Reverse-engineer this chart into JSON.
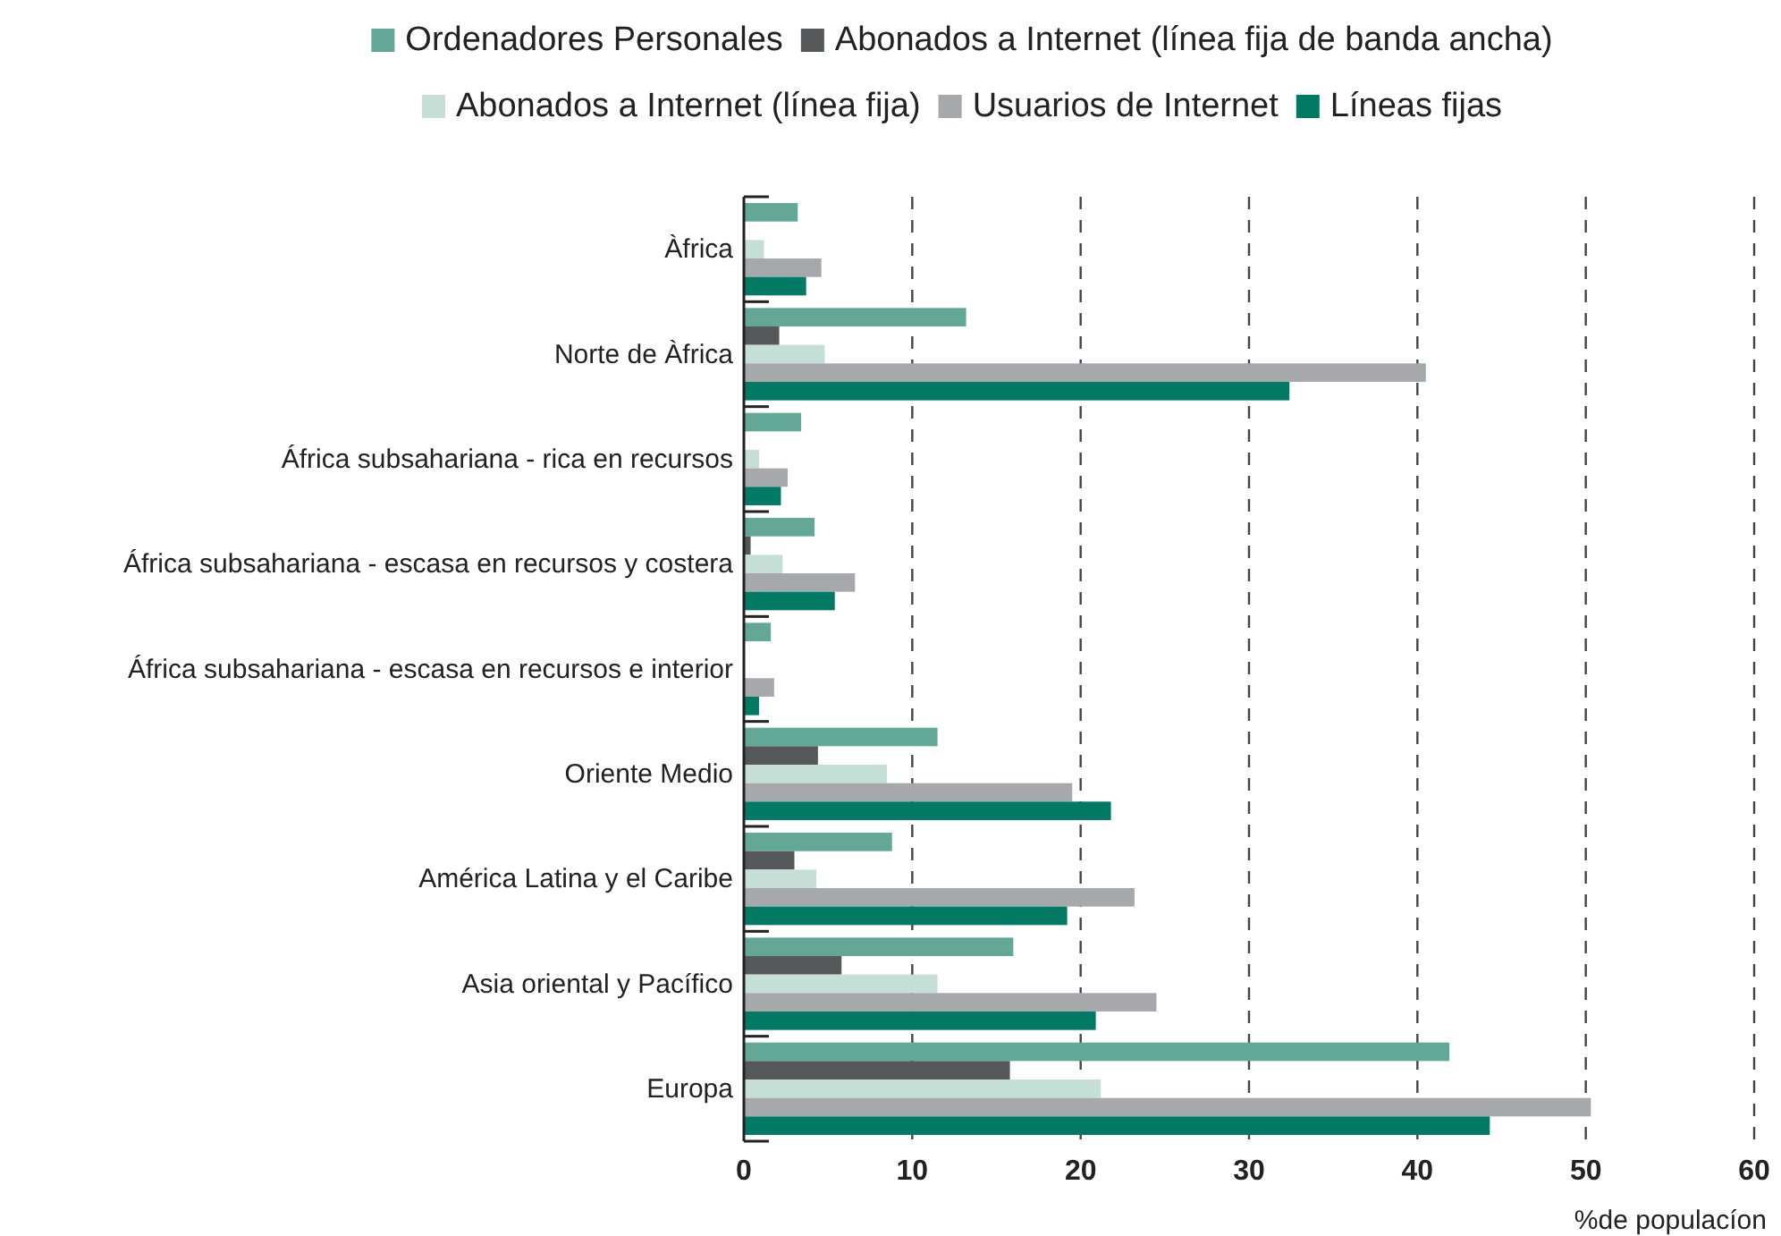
{
  "chart_data": {
    "type": "bar",
    "orientation": "horizontal",
    "xlabel": "%de populacíon",
    "categories": [
      "Àfrica",
      "Norte de Àfrica",
      "África subsahariana - rica en recursos",
      "África subsahariana - escasa en recursos y costera",
      "África subsahariana - escasa en recursos e interior",
      "Oriente Medio",
      "América Latina y el Caribe",
      "Asia oriental y Pacífico",
      "Europa"
    ],
    "series": [
      {
        "name": "Ordenadores Personales",
        "color": "#63a896",
        "values": [
          3.2,
          13.2,
          3.4,
          4.2,
          1.6,
          11.5,
          8.8,
          16.0,
          41.9
        ]
      },
      {
        "name": "Abonados a Internet (línea fija de banda ancha)",
        "color": "#555759",
        "values": [
          null,
          2.1,
          0,
          0.4,
          0,
          4.4,
          3.0,
          5.8,
          15.8
        ]
      },
      {
        "name": "Abonados a Internet (línea fija)",
        "color": "#c5dfd6",
        "values": [
          1.2,
          4.8,
          0.9,
          2.3,
          0,
          8.5,
          4.3,
          11.5,
          21.2
        ]
      },
      {
        "name": "Usuarios de Internet",
        "color": "#a7a8ac",
        "values": [
          4.6,
          40.5,
          2.6,
          6.6,
          1.8,
          19.5,
          23.2,
          24.5,
          50.3
        ]
      },
      {
        "name": "Líneas fijas",
        "color": "#007a65",
        "values": [
          3.7,
          32.4,
          2.2,
          5.4,
          0.9,
          21.8,
          19.2,
          20.9,
          44.3
        ]
      }
    ],
    "xlim": [
      0,
      60
    ],
    "xticks": [
      0,
      10,
      20,
      30,
      40,
      50,
      60
    ],
    "grid": "x",
    "legend": "top"
  }
}
